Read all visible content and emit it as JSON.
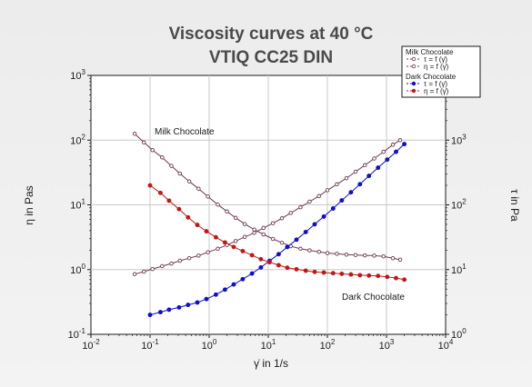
{
  "chart_data": {
    "type": "line",
    "title": "Viscosity curves at 40 °C",
    "subtitle": "VTIQ CC25 DIN",
    "xlabel": "γ̇ in 1/s",
    "ylabel_left": "η in Pas",
    "ylabel_right": "τ in Pa",
    "x_scale": "log",
    "y_left_scale": "log",
    "y_right_scale": "log",
    "xlim": [
      0.01,
      10000
    ],
    "ylim_left": [
      0.1,
      1000
    ],
    "ylim_right": [
      1,
      10000
    ],
    "x_ticks": [
      {
        "value": 0.01,
        "base": "10",
        "exp": "-2"
      },
      {
        "value": 0.1,
        "base": "10",
        "exp": "-1"
      },
      {
        "value": 1,
        "base": "10",
        "exp": "0"
      },
      {
        "value": 10,
        "base": "10",
        "exp": "1"
      },
      {
        "value": 100,
        "base": "10",
        "exp": "2"
      },
      {
        "value": 1000,
        "base": "10",
        "exp": "3"
      },
      {
        "value": 10000,
        "base": "10",
        "exp": "4"
      }
    ],
    "y_left_ticks": [
      {
        "value": 0.1,
        "base": "10",
        "exp": "-1"
      },
      {
        "value": 1,
        "base": "10",
        "exp": "0"
      },
      {
        "value": 10,
        "base": "10",
        "exp": "1"
      },
      {
        "value": 100,
        "base": "10",
        "exp": "2"
      },
      {
        "value": 1000,
        "base": "10",
        "exp": "3"
      }
    ],
    "y_right_ticks": [
      {
        "value": 1,
        "base": "10",
        "exp": "0"
      },
      {
        "value": 10,
        "base": "10",
        "exp": "1"
      },
      {
        "value": 100,
        "base": "10",
        "exp": "2"
      },
      {
        "value": 1000,
        "base": "10",
        "exp": "3"
      }
    ],
    "grid": true,
    "legend_position": "top-right",
    "legend_groups": [
      {
        "title": "Milk Chocolate",
        "entries": [
          "τ = f (γ̇)",
          "η = f (γ̇)"
        ]
      },
      {
        "title": "Dark Chocolate",
        "entries": [
          "τ = f (γ̇)",
          "η = f (γ̇)"
        ]
      }
    ],
    "annotations": [
      {
        "text": "Milk Chocolate",
        "near_series": "milk-viscosity"
      },
      {
        "text": "Dark Chocolate",
        "near_series": "dark-viscosity"
      }
    ],
    "series": [
      {
        "id": "milk-stress",
        "legend_group": 0,
        "legend_entry": 0,
        "axis": "right",
        "color": "#6b3a52",
        "marker": "open",
        "x": [
          0.055,
          0.079,
          0.11,
          0.16,
          0.23,
          0.32,
          0.46,
          0.66,
          0.95,
          1.4,
          2.0,
          2.8,
          4.0,
          5.8,
          8.3,
          12,
          17,
          24,
          35,
          50,
          72,
          100,
          145,
          210,
          300,
          430,
          620,
          890,
          1280,
          1700
        ],
        "y": [
          8.5,
          9.3,
          10.2,
          11.3,
          12.4,
          13.7,
          15.0,
          16.4,
          18.5,
          21,
          24,
          27.5,
          32,
          37,
          44,
          52,
          62,
          75,
          92,
          112,
          137,
          168,
          208,
          258,
          325,
          410,
          520,
          660,
          850,
          1000
        ]
      },
      {
        "id": "milk-viscosity",
        "legend_group": 0,
        "legend_entry": 1,
        "axis": "left",
        "color": "#6b3a52",
        "marker": "open",
        "x": [
          0.055,
          0.079,
          0.11,
          0.16,
          0.23,
          0.32,
          0.46,
          0.66,
          0.95,
          1.4,
          2.0,
          2.8,
          4.0,
          5.8,
          8.3,
          12,
          17,
          24,
          35,
          50,
          72,
          100,
          145,
          210,
          300,
          430,
          620,
          890,
          1280,
          1700
        ],
        "y": [
          125,
          92,
          70,
          54,
          40,
          30.5,
          23,
          17.8,
          13.4,
          10.1,
          7.9,
          6.3,
          5.05,
          4.15,
          3.5,
          2.98,
          2.6,
          2.3,
          2.1,
          1.98,
          1.88,
          1.8,
          1.75,
          1.7,
          1.68,
          1.66,
          1.64,
          1.6,
          1.5,
          1.42
        ]
      },
      {
        "id": "dark-stress",
        "legend_group": 1,
        "legend_entry": 0,
        "axis": "right",
        "color": "#1010c8",
        "marker": "filled",
        "x": [
          0.1,
          0.15,
          0.21,
          0.31,
          0.44,
          0.63,
          0.9,
          1.3,
          1.85,
          2.6,
          3.7,
          5.3,
          7.5,
          10.5,
          15,
          21,
          30,
          43,
          61,
          87,
          125,
          175,
          250,
          355,
          505,
          720,
          1030,
          1450,
          2000
        ],
        "y": [
          2.0,
          2.2,
          2.4,
          2.6,
          2.85,
          3.1,
          3.5,
          4.1,
          4.9,
          5.9,
          7.1,
          8.7,
          10.8,
          13.6,
          17.3,
          22.3,
          29,
          38,
          50,
          66,
          88,
          117,
          156,
          208,
          280,
          375,
          500,
          660,
          870
        ]
      },
      {
        "id": "dark-viscosity",
        "legend_group": 1,
        "legend_entry": 1,
        "axis": "left",
        "color": "#c01818",
        "marker": "filled",
        "x": [
          0.1,
          0.15,
          0.21,
          0.31,
          0.44,
          0.63,
          0.9,
          1.3,
          1.85,
          2.6,
          3.7,
          5.3,
          7.5,
          10.5,
          15,
          21,
          30,
          43,
          61,
          87,
          125,
          175,
          250,
          355,
          505,
          720,
          1030,
          1450,
          2000
        ],
        "y": [
          20,
          15.3,
          11.6,
          8.6,
          6.4,
          4.9,
          3.9,
          3.15,
          2.62,
          2.24,
          1.93,
          1.67,
          1.45,
          1.3,
          1.17,
          1.07,
          1.01,
          0.96,
          0.92,
          0.9,
          0.88,
          0.86,
          0.84,
          0.82,
          0.81,
          0.8,
          0.77,
          0.74,
          0.7
        ]
      }
    ]
  }
}
